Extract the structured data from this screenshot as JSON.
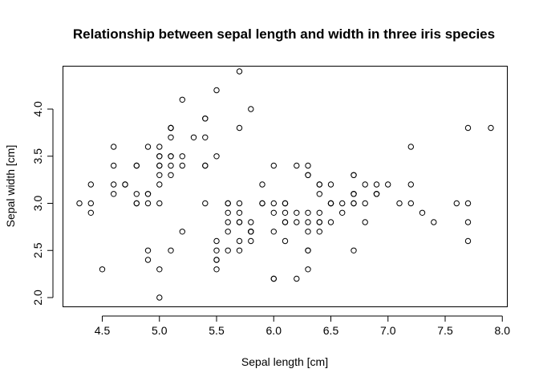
{
  "chart_data": {
    "type": "scatter",
    "title": "Relationship between sepal length and width in three iris species",
    "xlabel": "Sepal length [cm]",
    "ylabel": "Sepal width [cm]",
    "xlim": [
      4.3,
      7.9
    ],
    "ylim": [
      2.0,
      4.4
    ],
    "x_ticks": [
      4.5,
      5.0,
      5.5,
      6.0,
      6.5,
      7.0,
      7.5,
      8.0
    ],
    "x_tick_labels": [
      "4.5",
      "5.0",
      "5.5",
      "6.0",
      "6.5",
      "7.0",
      "7.5",
      "8.0"
    ],
    "y_ticks": [
      2.0,
      2.5,
      3.0,
      3.5,
      4.0
    ],
    "y_tick_labels": [
      "2.0",
      "2.5",
      "3.0",
      "3.5",
      "4.0"
    ],
    "grid": false,
    "marker": "open-circle",
    "x": [
      5.1,
      4.9,
      4.7,
      4.6,
      5.0,
      5.4,
      4.6,
      5.0,
      4.4,
      4.9,
      5.4,
      4.8,
      4.8,
      4.3,
      5.8,
      5.7,
      5.4,
      5.1,
      5.7,
      5.1,
      5.4,
      5.1,
      4.6,
      5.1,
      4.8,
      5.0,
      5.0,
      5.2,
      5.2,
      4.7,
      4.8,
      5.4,
      5.2,
      5.5,
      4.9,
      5.0,
      5.5,
      4.9,
      4.4,
      5.1,
      5.0,
      4.5,
      4.4,
      5.0,
      5.1,
      4.8,
      5.1,
      4.6,
      5.3,
      5.0,
      7.0,
      6.4,
      6.9,
      5.5,
      6.5,
      5.7,
      6.3,
      4.9,
      6.6,
      5.2,
      5.0,
      5.9,
      6.0,
      6.1,
      5.6,
      6.7,
      5.6,
      5.8,
      6.2,
      5.6,
      5.9,
      6.1,
      6.3,
      6.1,
      6.4,
      6.6,
      6.8,
      6.7,
      6.0,
      5.7,
      5.5,
      5.5,
      5.8,
      6.0,
      5.4,
      6.0,
      6.7,
      6.3,
      5.6,
      5.5,
      5.5,
      6.1,
      5.8,
      5.0,
      5.6,
      5.7,
      5.7,
      6.2,
      5.1,
      5.7,
      6.3,
      5.8,
      7.1,
      6.3,
      6.5,
      7.6,
      4.9,
      7.3,
      6.7,
      7.2,
      6.5,
      6.4,
      6.8,
      5.7,
      5.8,
      6.4,
      6.5,
      7.7,
      7.7,
      6.0,
      6.9,
      5.6,
      7.7,
      6.3,
      6.7,
      7.2,
      6.2,
      6.1,
      6.4,
      7.2,
      7.4,
      7.9,
      6.4,
      6.3,
      6.1,
      7.7,
      6.3,
      6.4,
      6.0,
      6.9,
      6.7,
      6.9,
      5.8,
      6.8,
      6.7,
      6.7,
      6.3,
      6.5,
      6.2,
      5.9
    ],
    "y": [
      3.5,
      3.0,
      3.2,
      3.1,
      3.6,
      3.9,
      3.4,
      3.4,
      2.9,
      3.1,
      3.7,
      3.4,
      3.0,
      3.0,
      4.0,
      4.4,
      3.9,
      3.5,
      3.8,
      3.8,
      3.4,
      3.7,
      3.6,
      3.3,
      3.4,
      3.0,
      3.4,
      3.5,
      3.4,
      3.2,
      3.1,
      3.4,
      4.1,
      4.2,
      3.1,
      3.2,
      3.5,
      3.6,
      3.0,
      3.4,
      3.5,
      2.3,
      3.2,
      3.5,
      3.8,
      3.0,
      3.8,
      3.2,
      3.7,
      3.3,
      3.2,
      3.2,
      3.1,
      2.3,
      2.8,
      2.8,
      3.3,
      2.4,
      2.9,
      2.7,
      2.0,
      3.0,
      2.2,
      2.9,
      2.9,
      3.1,
      3.0,
      2.7,
      2.2,
      2.5,
      3.2,
      2.8,
      2.5,
      2.8,
      2.9,
      3.0,
      2.8,
      3.0,
      2.9,
      2.6,
      2.4,
      2.4,
      2.7,
      2.7,
      3.0,
      3.4,
      3.1,
      2.3,
      3.0,
      2.5,
      2.6,
      3.0,
      2.6,
      2.3,
      2.7,
      3.0,
      2.9,
      2.9,
      2.5,
      2.8,
      3.3,
      2.7,
      3.0,
      2.9,
      3.0,
      3.0,
      2.5,
      2.9,
      2.5,
      3.6,
      3.2,
      2.7,
      3.0,
      2.5,
      2.8,
      3.2,
      3.0,
      3.8,
      2.6,
      2.2,
      3.2,
      2.8,
      2.8,
      2.7,
      3.3,
      3.2,
      2.8,
      3.0,
      2.8,
      3.0,
      2.8,
      3.8,
      2.8,
      2.8,
      2.6,
      3.0,
      3.4,
      3.1,
      3.0,
      3.1,
      3.1,
      3.1,
      2.7,
      3.2,
      3.3,
      3.0,
      2.5,
      3.0,
      3.4,
      3.0
    ]
  }
}
